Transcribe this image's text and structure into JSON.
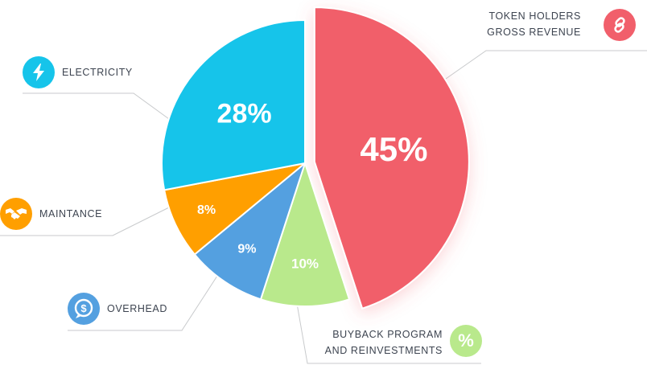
{
  "chart_data": {
    "type": "pie",
    "slices": [
      {
        "label_lines": [
          "TOKEN HOLDERS",
          "GROSS REVENUE"
        ],
        "value": 45,
        "text": "45%",
        "color": "#f15f6b",
        "icon": "link-icon",
        "exploded": true
      },
      {
        "label_lines": [
          "BUYBACK PROGRAM",
          "AND REINVESTMENTS"
        ],
        "value": 10,
        "text": "10%",
        "color": "#b9e98c",
        "icon": "percent-icon"
      },
      {
        "label_lines": [
          "OVERHEAD"
        ],
        "value": 9,
        "text": "9%",
        "color": "#54a0e0",
        "icon": "dollar-icon"
      },
      {
        "label_lines": [
          "MAINTANCE"
        ],
        "value": 8,
        "text": "8%",
        "color": "#ff9f00",
        "icon": "handshake-icon"
      },
      {
        "label_lines": [
          "ELECTRICITY"
        ],
        "value": 28,
        "text": "28%",
        "color": "#16c4ea",
        "icon": "lightning-icon"
      }
    ]
  },
  "badges": {
    "percent_glyph": "%",
    "dollar_glyph": "$"
  }
}
